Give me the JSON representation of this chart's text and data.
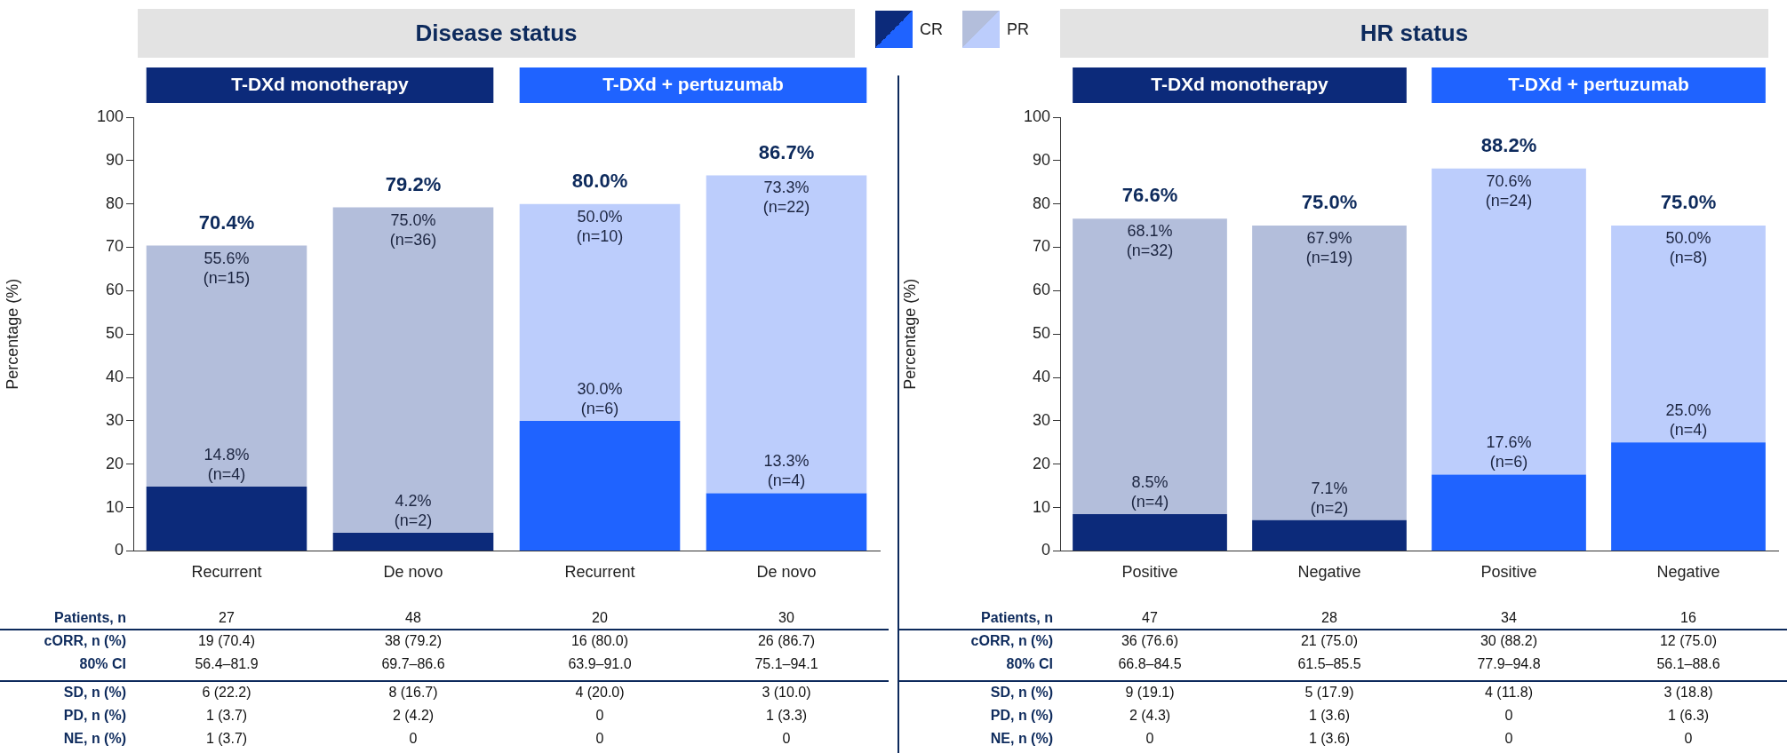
{
  "chart_data": [
    {
      "type": "bar",
      "stacked": true,
      "title": "Disease status",
      "categories": [
        "Recurrent",
        "De novo",
        "Recurrent",
        "De novo"
      ],
      "series": [
        {
          "name": "CR",
          "colors": [
            "#0c2a7a",
            "#0c2a7a",
            "#1f63ff",
            "#1f63ff"
          ],
          "values": [
            14.8,
            4.2,
            30.0,
            13.3
          ],
          "value_labels": [
            "14.8% (n=4)",
            "4.2% (n=2)",
            "30.0% (n=6)",
            "13.3% (n=4)"
          ]
        },
        {
          "name": "PR",
          "colors": [
            "#b3bedb",
            "#b3bedb",
            "#bccdfc",
            "#bccdfc"
          ],
          "values": [
            55.6,
            75.0,
            50.0,
            73.3
          ],
          "value_labels": [
            "55.6% (n=15)",
            "75.0% (n=36)",
            "50.0% (n=10)",
            "73.3% (n=22)"
          ]
        }
      ],
      "totals": [
        "70.4%",
        "79.2%",
        "80.0%",
        "86.7%"
      ],
      "ylim": [
        0,
        100
      ],
      "yticks": [
        0,
        10,
        20,
        30,
        40,
        50,
        60,
        70,
        80,
        90,
        100
      ],
      "ylabel": "Percentage (%)",
      "grid": false,
      "legend": "top right",
      "annotations": [
        "T-DXd monotherapy",
        "T-DXd + pertuzumab",
        "Patients, n",
        "27",
        "48",
        "20",
        "30",
        "cORR, n (%)",
        "19 (70.4)",
        "38 (79.2)",
        "16 (80.0)",
        "26 (86.7)",
        "80% CI",
        "56.4–81.9",
        "69.7–86.6",
        "63.9–91.0",
        "75.1–94.1",
        "SD, n (%)",
        "6 (22.2)",
        "8 (16.7)",
        "4 (20.0)",
        "3 (10.0)",
        "PD, n (%)",
        "1 (3.7)",
        "2 (4.2)",
        "0",
        "1 (3.3)",
        "NE, n (%)",
        "1 (3.7)",
        "0",
        "0",
        "0"
      ]
    },
    {
      "type": "bar",
      "stacked": true,
      "title": "HR status",
      "categories": [
        "Positive",
        "Negative",
        "Positive",
        "Negative"
      ],
      "series": [
        {
          "colors": [
            "#0c2a7a",
            "#0c2a7a",
            "#1f63ff",
            "#1f63ff"
          ],
          "values": [
            8.5,
            7.1,
            17.6,
            25.0
          ],
          "value_labels": [
            "8.5% (n=4)",
            "7.1% (n=2)",
            "17.6% (n=6)",
            "25.0% (n=4)"
          ]
        },
        {
          "colors": [
            "#b3bedb",
            "#b3bedb",
            "#bccdfc",
            "#bccdfc"
          ],
          "values": [
            68.1,
            67.9,
            70.6,
            50.0
          ],
          "value_labels": [
            "68.1% (n=32)",
            "67.9% (n=19)",
            "70.6% (n=24)",
            "50.0% (n=8)"
          ]
        }
      ],
      "totals": [
        "76.6%",
        "75.0%",
        "88.2%",
        "75.0%"
      ],
      "ylim": [
        0,
        100
      ],
      "yticks": [
        0,
        10,
        20,
        30,
        40,
        50,
        60,
        70,
        80,
        90,
        100
      ],
      "ylabel": "Percentage (%)",
      "grid": false,
      "annotations": [
        "T-DXd monotherapy",
        "T-DXd + pertuzumab",
        "Patients, n",
        "47",
        "28",
        "34",
        "16",
        "cORR, n (%)",
        "36 (76.6)",
        "21 (75.0)",
        "30 (88.2)",
        "12 (75.0)",
        "80% CI",
        "66.8–84.5",
        "61.5–85.5",
        "77.9–94.8",
        "56.1–88.6",
        "SD, n (%)",
        "9 (19.1)",
        "5 (17.9)",
        "4 (11.8)",
        "3 (18.8)",
        "PD, n (%)",
        "2 (4.3)",
        "1 (3.6)",
        "0",
        "1 (6.3)",
        "NE, n (%)",
        "0",
        "1 (3.6)",
        "0",
        "0"
      ]
    }
  ]
}
